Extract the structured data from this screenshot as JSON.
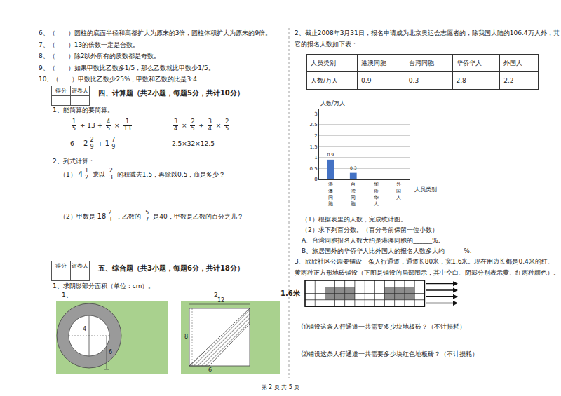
{
  "left": {
    "judgements": [
      "6、（　　）圆柱的底面半径和高都扩大为原来的3倍，圆柱体积扩大为原来的9倍。",
      "7、（　　）13的倍数一定是合数。",
      "8、（　　）除2以外所有的质数都是奇数。",
      "9、（　　）如果甲数比乙数多1/5，那么乙数就比甲数少1/5。",
      "10、（　　）甲数比乙数少25%，甲数和乙数的比是3:4."
    ],
    "score_box": [
      "得分",
      "评卷人"
    ],
    "section4": {
      "heading": "四、计算题（共2小题，每题5分，共计10分）",
      "q1": "1、能简算的要简算。",
      "expressions": [
        [
          {
            "n": "1",
            "d": "5"
          },
          "÷ 13 +",
          {
            "n": "4",
            "d": "5"
          },
          "×",
          {
            "n": "1",
            "d": "13"
          }
        ],
        [
          {
            "n": "3",
            "d": "4"
          },
          "×",
          {
            "n": "2",
            "d": "5"
          },
          "÷",
          {
            "n": "3",
            "d": "4"
          },
          "×",
          {
            "n": "2",
            "d": "5"
          }
        ],
        [
          "6 −",
          {
            "w": "2",
            "n": "2",
            "d": "9"
          },
          "+",
          {
            "w": "1",
            "n": "7",
            "d": "9"
          }
        ],
        [
          "2.5×32×12.5"
        ]
      ],
      "q2": "2、列式计算：",
      "q2_items": [
        [
          "（1）",
          {
            "w": "4",
            "n": "1",
            "d": "2"
          },
          "乘以",
          {
            "n": "2",
            "d": "3"
          },
          "的积减去1.5，再除以0.5，商是多少？"
        ],
        [
          "（2）甲数是",
          {
            "w": "18",
            "n": "2",
            "d": "3"
          },
          "，乙数的",
          {
            "n": "5",
            "d": "7"
          },
          "是40，甲数是乙数的百分之几？"
        ]
      ]
    },
    "section5": {
      "heading": "五、综合题（共3小题，每题6分，共计18分）",
      "q1": "1、求阴影部分面积（单位：cm）。",
      "fig1": {
        "label": "1、",
        "inner": "4",
        "outer": "6"
      },
      "fig2": {
        "label": "2、",
        "top": "12",
        "left": "8",
        "bottom": "6"
      }
    }
  },
  "right": {
    "q2_lines": [
      "2、截止2008年3月31日，报名申请成为北京奥运会志愿者的，除我国大陆的106.4万人外，其",
      "它的报名人数如下表："
    ],
    "table": {
      "rows": [
        [
          "人员类别",
          "港澳同胞",
          "台湾同胞",
          "华侨华人",
          "外国人"
        ],
        [
          "人数/万人",
          "0.9",
          "0.3",
          "2.8",
          "2.2"
        ]
      ]
    },
    "after_chart": [
      "（1）根据表里的人数，完成统计图。",
      "（2）求下列百分数。（百分号前保留一位小数）",
      "A、台湾同胞报名人数大约是港澳同胞的______%.",
      "B、旅居国外的华侨华人比外国人的报名人数多大约______%."
    ],
    "q3_lines": [
      "3、欣欣社区公园要铺设一条人行通道，通道长80米，宽1.6米。现在用边长都是0.4米的红、",
      "黄两种正方形地砖铺设（下图是铺设的局部图示，其中空白、阴影分别表示黄、红两种颜色）。"
    ],
    "tile_label": "1.6米",
    "q3_sub": [
      "⑴铺设这条人行通道一共需要多少块地板砖？（不计损耗）",
      "⑵铺设这条人行通道一共需要多少块红色地板砖？（不计损耗）"
    ]
  },
  "footer": "第 2 页 共 5 页",
  "chart_data": {
    "type": "bar",
    "y_label": "人数/万人",
    "x_label": "人员类别",
    "categories": [
      "港澳同胞",
      "台湾同胞",
      "华侨华人",
      "外国人"
    ],
    "values": [
      0.9,
      0.3,
      null,
      null
    ],
    "color": "#4472c4",
    "ylim": [
      0,
      3.2
    ],
    "yticks": [
      0,
      0.5,
      1,
      1.5,
      2,
      2.5,
      3
    ],
    "grid": true,
    "data_labels": true
  }
}
